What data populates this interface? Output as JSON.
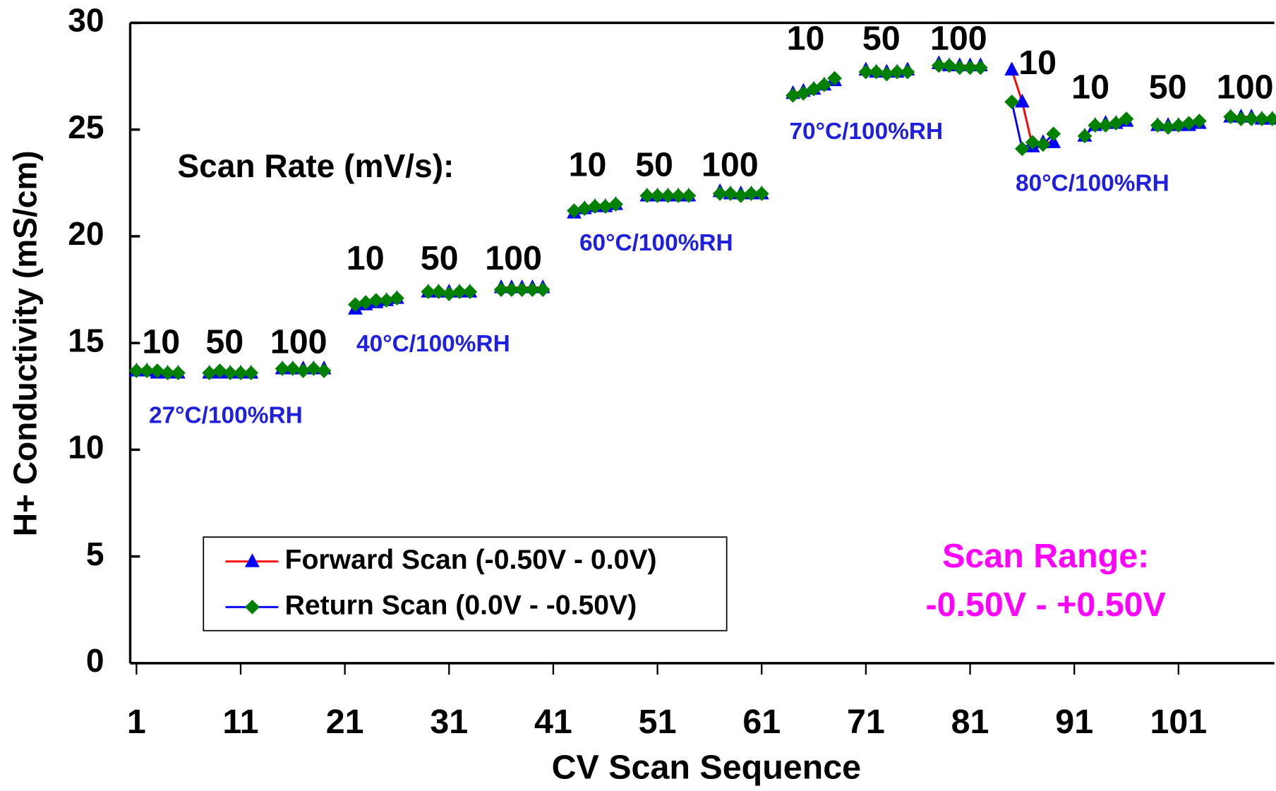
{
  "chart_data": {
    "type": "line",
    "x_label": "CV Scan Sequence",
    "y_label": "H+ Conductivity (mS/cm)",
    "x": [
      1,
      2,
      3,
      4,
      5,
      6,
      7,
      8,
      9,
      10,
      11,
      12,
      13,
      14,
      15,
      16,
      17,
      18,
      19,
      20,
      21,
      22,
      23,
      24,
      25,
      26,
      27,
      28,
      29,
      30,
      31,
      32,
      33,
      34,
      35,
      36,
      37,
      38,
      39,
      40,
      41,
      42,
      43,
      44,
      45,
      46,
      47,
      48,
      49,
      50,
      51,
      52,
      53,
      54,
      55,
      56,
      57,
      58,
      59,
      60,
      61,
      62,
      63,
      64,
      65,
      66,
      67,
      68,
      69,
      70,
      71,
      72,
      73,
      74,
      75,
      76,
      77,
      78,
      79,
      80,
      81,
      82,
      83,
      84,
      85,
      86,
      87,
      88,
      89,
      90,
      91,
      92,
      93,
      94,
      95,
      96,
      97,
      98,
      99,
      100,
      101,
      102,
      103,
      104,
      105,
      106,
      107,
      108,
      109,
      110
    ],
    "series": [
      {
        "name": "Forward Scan (-0.50V - 0.0V)",
        "color": "#ff0000",
        "marker": "triangle",
        "marker_color": "#0000ff",
        "values": [
          13.7,
          13.7,
          13.6,
          13.6,
          13.6,
          null,
          null,
          13.6,
          13.6,
          13.6,
          13.6,
          13.6,
          null,
          null,
          13.8,
          13.8,
          13.8,
          13.8,
          13.8,
          null,
          null,
          16.6,
          16.8,
          16.9,
          17.0,
          17.1,
          null,
          null,
          17.4,
          17.4,
          17.4,
          17.4,
          17.4,
          null,
          null,
          17.6,
          17.6,
          17.6,
          17.6,
          17.6,
          null,
          null,
          21.1,
          21.3,
          21.4,
          21.4,
          21.5,
          null,
          null,
          21.9,
          21.9,
          21.9,
          21.9,
          21.9,
          null,
          null,
          22.1,
          22.0,
          22.0,
          22.0,
          22.0,
          null,
          null,
          26.7,
          26.8,
          26.9,
          27.1,
          27.3,
          null,
          null,
          27.8,
          27.7,
          27.7,
          27.7,
          27.8,
          null,
          null,
          28.1,
          28.0,
          28.0,
          28.0,
          28.0,
          null,
          null,
          27.8,
          26.3,
          24.2,
          24.4,
          24.4,
          null,
          null,
          24.7,
          25.2,
          25.3,
          25.3,
          25.4,
          null,
          null,
          25.2,
          25.2,
          25.2,
          25.2,
          25.3,
          null,
          null,
          25.6,
          25.6,
          25.6,
          25.5,
          25.5
        ]
      },
      {
        "name": "Return Scan (0.0V - -0.50V)",
        "color": "#0000ff",
        "marker": "diamond",
        "marker_color": "#008000",
        "values": [
          13.7,
          13.7,
          13.7,
          13.6,
          13.6,
          null,
          null,
          13.6,
          13.7,
          13.6,
          13.6,
          13.6,
          null,
          null,
          13.8,
          13.8,
          13.7,
          13.8,
          13.7,
          null,
          null,
          16.8,
          16.9,
          17.0,
          17.0,
          17.1,
          null,
          null,
          17.4,
          17.4,
          17.3,
          17.4,
          17.4,
          null,
          null,
          17.5,
          17.5,
          17.5,
          17.5,
          17.5,
          null,
          null,
          21.2,
          21.3,
          21.4,
          21.4,
          21.5,
          null,
          null,
          21.9,
          21.9,
          21.9,
          21.9,
          21.9,
          null,
          null,
          22.0,
          22.0,
          21.9,
          22.0,
          22.0,
          null,
          null,
          26.6,
          26.7,
          26.9,
          27.1,
          27.4,
          null,
          null,
          27.7,
          27.7,
          27.6,
          27.7,
          27.7,
          null,
          null,
          28.0,
          28.0,
          27.9,
          27.9,
          27.9,
          null,
          null,
          26.3,
          24.1,
          24.4,
          24.3,
          24.8,
          null,
          null,
          24.7,
          25.2,
          25.2,
          25.3,
          25.5,
          null,
          null,
          25.2,
          25.1,
          25.2,
          25.3,
          25.4,
          null,
          null,
          25.6,
          25.5,
          25.5,
          25.5,
          25.5
        ]
      }
    ],
    "xlim": [
      0.4,
      110.2
    ],
    "xticks": [
      1,
      11,
      21,
      31,
      41,
      51,
      61,
      71,
      81,
      91,
      101
    ],
    "ylim": [
      0,
      30
    ],
    "yticks": [
      0,
      5,
      10,
      15,
      20,
      25,
      30
    ],
    "grid": false,
    "legend_position": "lower left",
    "annotations": {
      "scan_rate_title": "Scan Rate (mV/s):",
      "scan_rates": [
        "10",
        "50",
        "100",
        "10",
        "50",
        "100",
        "10",
        "50",
        "100",
        "10",
        "50",
        "100",
        "10",
        "10",
        "50",
        "100"
      ],
      "conditions": [
        "27°C/100%RH",
        "40°C/100%RH",
        "60°C/100%RH",
        "70°C/100%RH",
        "80°C/100%RH"
      ],
      "scan_range_title": "Scan Range:",
      "scan_range": "-0.50V - +0.50V"
    }
  }
}
